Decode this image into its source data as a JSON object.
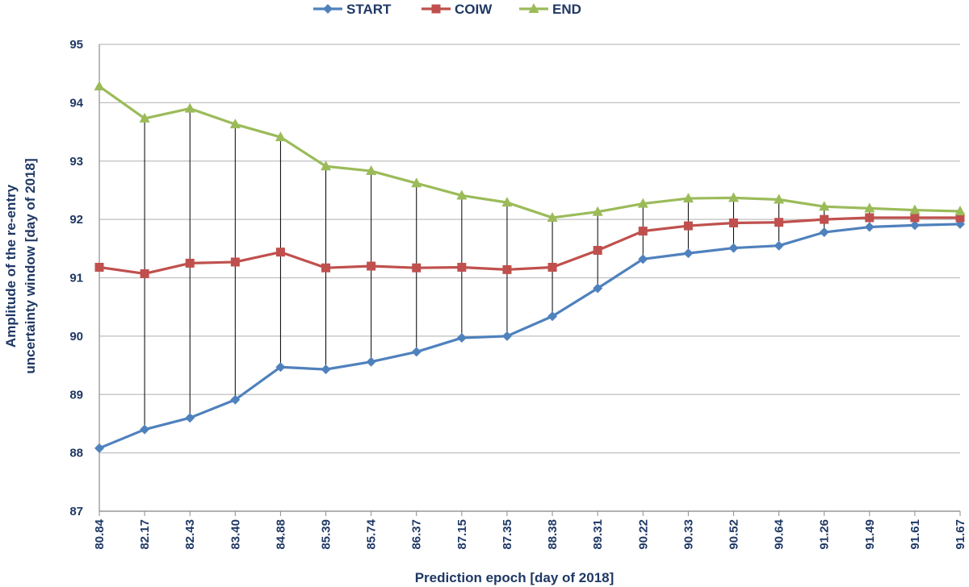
{
  "chart_data": {
    "type": "line",
    "categories": [
      "80.84",
      "82.17",
      "82.43",
      "83.40",
      "84.88",
      "85.39",
      "85.74",
      "86.37",
      "87.15",
      "87.35",
      "88.38",
      "89.31",
      "90.22",
      "90.33",
      "90.52",
      "90.64",
      "91.26",
      "91.49",
      "91.61",
      "91.67"
    ],
    "series": [
      {
        "name": "START",
        "color": "#4f81bd",
        "marker": "diamond",
        "values": [
          88.08,
          88.4,
          88.6,
          88.91,
          89.47,
          89.43,
          89.56,
          89.73,
          89.97,
          90.0,
          90.34,
          90.82,
          91.32,
          91.42,
          91.51,
          91.55,
          91.78,
          91.87,
          91.9,
          91.92
        ]
      },
      {
        "name": "COIW",
        "color": "#c0504d",
        "marker": "square",
        "values": [
          91.18,
          91.07,
          91.25,
          91.27,
          91.44,
          91.17,
          91.2,
          91.17,
          91.18,
          91.14,
          91.18,
          91.47,
          91.8,
          91.89,
          91.94,
          91.95,
          92.0,
          92.03,
          92.03,
          92.03
        ]
      },
      {
        "name": "END",
        "color": "#9bbb59",
        "marker": "triangle",
        "values": [
          94.28,
          93.73,
          93.9,
          93.63,
          93.41,
          92.91,
          92.83,
          92.62,
          92.41,
          92.29,
          92.03,
          92.13,
          92.27,
          92.36,
          92.37,
          92.34,
          92.22,
          92.19,
          92.16,
          92.14
        ]
      }
    ],
    "xlabel": "Prediction epoch [day of 2018]",
    "ylabel_lines": [
      "Amplitude of the re-entry",
      "uncertainty window [day of 2018]"
    ],
    "ylim": [
      87,
      95
    ],
    "yticks": [
      "87",
      "88",
      "89",
      "90",
      "91",
      "92",
      "93",
      "94",
      "95"
    ],
    "grid": true,
    "legend_position": "top-center",
    "drop_lines": true
  }
}
